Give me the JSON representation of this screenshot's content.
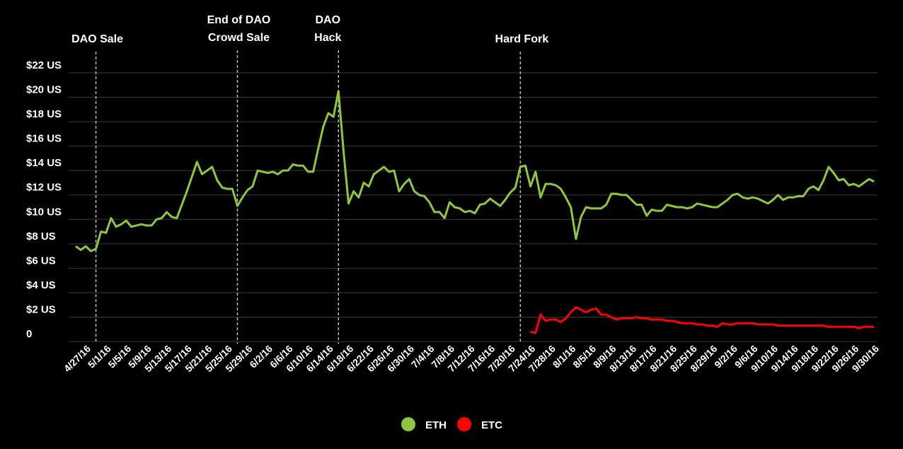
{
  "chart_data": {
    "type": "line",
    "categories": [
      "4/27/16",
      null,
      null,
      null,
      "5/1/16",
      null,
      null,
      null,
      "5/5/16",
      null,
      null,
      null,
      "5/9/16",
      null,
      null,
      null,
      "5/13/16",
      null,
      null,
      null,
      "5/17/16",
      null,
      null,
      null,
      "5/21/16",
      null,
      null,
      null,
      "5/25/16",
      null,
      null,
      null,
      "5/29/16",
      null,
      null,
      null,
      "6/2/16",
      null,
      null,
      null,
      "6/6/16",
      null,
      null,
      null,
      "6/10/16",
      null,
      null,
      null,
      "6/14/16",
      null,
      null,
      null,
      "6/18/16",
      null,
      null,
      null,
      "6/22/16",
      null,
      null,
      null,
      "6/26/16",
      null,
      null,
      null,
      "6/30/16",
      null,
      null,
      null,
      "7/4/16",
      null,
      null,
      null,
      "7/8/16",
      null,
      null,
      null,
      "7/12/16",
      null,
      null,
      null,
      "7/16/16",
      null,
      null,
      null,
      "7/20/16",
      null,
      null,
      null,
      "7/24/16",
      null,
      null,
      null,
      "7/28/16",
      null,
      null,
      null,
      "8/1/16",
      null,
      null,
      null,
      "8/5/16",
      null,
      null,
      null,
      "8/9/16",
      null,
      null,
      null,
      "8/13/16",
      null,
      null,
      null,
      "8/17/16",
      null,
      null,
      null,
      "8/21/16",
      null,
      null,
      null,
      "8/25/16",
      null,
      null,
      null,
      "8/29/16",
      null,
      null,
      null,
      "9/2/16",
      null,
      null,
      null,
      "9/6/16",
      null,
      null,
      null,
      "9/10/16",
      null,
      null,
      null,
      "9/14/16",
      null,
      null,
      null,
      "9/18/16",
      null,
      null,
      null,
      "9/22/16",
      null,
      null,
      null,
      "9/26/16",
      null,
      null,
      null,
      "9/30/16",
      null,
      null
    ],
    "series": [
      {
        "name": "ETH",
        "color": "#8dc63f",
        "values": [
          7.8,
          7.5,
          7.8,
          7.4,
          7.6,
          9.0,
          8.9,
          10.1,
          9.4,
          9.6,
          9.9,
          9.4,
          9.5,
          9.6,
          9.5,
          9.5,
          10.0,
          10.1,
          10.6,
          10.2,
          10.1,
          11.2,
          12.3,
          13.5,
          14.7,
          13.7,
          14.0,
          14.3,
          13.2,
          12.6,
          12.5,
          12.5,
          11.1,
          11.8,
          12.4,
          12.7,
          14.0,
          13.9,
          13.8,
          13.9,
          13.7,
          14.0,
          14.0,
          14.5,
          14.4,
          14.4,
          13.9,
          13.9,
          15.8,
          17.6,
          18.7,
          18.4,
          20.5,
          15.6,
          11.3,
          12.3,
          11.8,
          13.0,
          12.7,
          13.7,
          14.0,
          14.3,
          13.9,
          14.0,
          12.3,
          12.9,
          13.3,
          12.3,
          12.0,
          11.9,
          11.4,
          10.6,
          10.6,
          10.1,
          11.4,
          11.0,
          10.9,
          10.6,
          10.7,
          10.5,
          11.2,
          11.3,
          11.7,
          11.4,
          11.1,
          11.6,
          12.2,
          12.6,
          14.3,
          14.4,
          12.7,
          13.9,
          11.8,
          12.9,
          12.9,
          12.8,
          12.5,
          11.8,
          11.0,
          8.4,
          10.2,
          11.0,
          10.9,
          10.9,
          10.9,
          11.2,
          12.1,
          12.1,
          12.0,
          12.0,
          11.6,
          11.2,
          11.2,
          10.3,
          10.8,
          10.7,
          10.7,
          11.2,
          11.1,
          11.0,
          11.0,
          10.9,
          11.0,
          11.3,
          11.2,
          11.1,
          11.0,
          11.0,
          11.3,
          11.6,
          12.0,
          12.1,
          11.8,
          11.7,
          11.8,
          11.7,
          11.5,
          11.3,
          11.6,
          12.0,
          11.6,
          11.8,
          11.8,
          11.9,
          11.9,
          12.5,
          12.7,
          12.4,
          13.2,
          14.3,
          13.8,
          13.2,
          13.3,
          12.8,
          12.9,
          12.7,
          13.0,
          13.3,
          13.1
        ]
      },
      {
        "name": "ETC",
        "color": "#ff0000",
        "values": [
          null,
          null,
          null,
          null,
          null,
          null,
          null,
          null,
          null,
          null,
          null,
          null,
          null,
          null,
          null,
          null,
          null,
          null,
          null,
          null,
          null,
          null,
          null,
          null,
          null,
          null,
          null,
          null,
          null,
          null,
          null,
          null,
          null,
          null,
          null,
          null,
          null,
          null,
          null,
          null,
          null,
          null,
          null,
          null,
          null,
          null,
          null,
          null,
          null,
          null,
          null,
          null,
          null,
          null,
          null,
          null,
          null,
          null,
          null,
          null,
          null,
          null,
          null,
          null,
          null,
          null,
          null,
          null,
          null,
          null,
          null,
          null,
          null,
          null,
          null,
          null,
          null,
          null,
          null,
          null,
          null,
          null,
          null,
          null,
          null,
          null,
          null,
          null,
          null,
          null,
          0.8,
          0.7,
          2.2,
          1.7,
          1.8,
          1.8,
          1.6,
          1.9,
          2.4,
          2.8,
          2.6,
          2.4,
          2.6,
          2.7,
          2.2,
          2.2,
          2.0,
          1.8,
          1.9,
          1.9,
          1.9,
          2.0,
          1.9,
          1.9,
          1.8,
          1.8,
          1.8,
          1.7,
          1.7,
          1.6,
          1.5,
          1.5,
          1.5,
          1.4,
          1.4,
          1.3,
          1.3,
          1.2,
          1.5,
          1.4,
          1.4,
          1.5,
          1.5,
          1.5,
          1.5,
          1.4,
          1.4,
          1.4,
          1.4,
          1.3,
          1.3,
          1.3,
          1.3,
          1.3,
          1.3,
          1.3,
          1.3,
          1.3,
          1.3,
          1.2,
          1.2,
          1.2,
          1.2,
          1.2,
          1.2,
          1.1,
          1.2,
          1.2,
          1.2
        ]
      }
    ],
    "ylim": [
      0,
      22
    ],
    "yticks": [
      0,
      {
        "value": 2,
        "label": "$2 US"
      },
      {
        "value": 4,
        "label": "$4 US"
      },
      {
        "value": 6,
        "label": "$6 US"
      },
      {
        "value": 8,
        "label": "$8 US"
      },
      {
        "value": 10,
        "label": "$10 US"
      },
      {
        "value": 12,
        "label": "$12 US"
      },
      {
        "value": 14,
        "label": "$14 US"
      },
      {
        "value": 16,
        "label": "$16 US"
      },
      {
        "value": 18,
        "label": "$18 US"
      },
      {
        "value": 20,
        "label": "$20 US"
      },
      {
        "value": 22,
        "label": "$22 US"
      }
    ],
    "grid": true,
    "legend": "bottom",
    "annotations": [
      {
        "text": [
          "DAO Sale"
        ],
        "at": "5/1/16"
      },
      {
        "text": [
          "End of DAO",
          "Crowd Sale"
        ],
        "at": "5/29/16"
      },
      {
        "text": [
          "DAO",
          "Hack"
        ],
        "at": "6/18/16"
      },
      {
        "text": [
          "Hard Fork"
        ],
        "at": "7/24/16"
      }
    ]
  }
}
